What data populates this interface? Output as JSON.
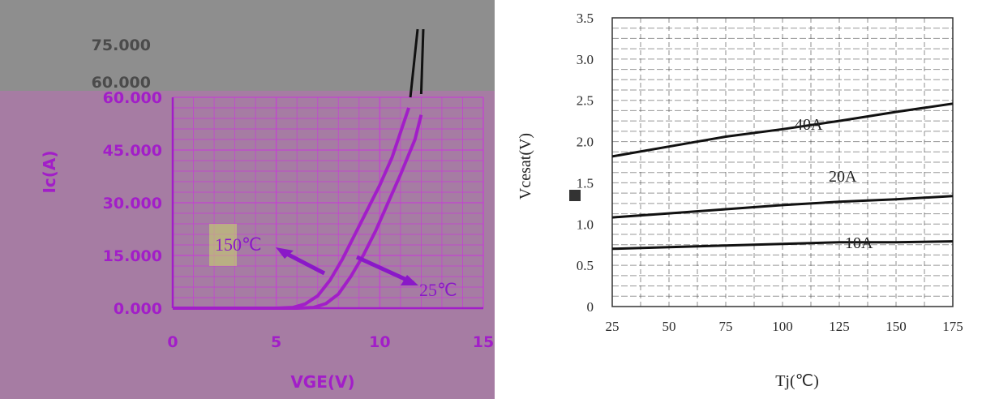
{
  "chart_data": [
    {
      "type": "line",
      "xlabel": "VGE(V)",
      "ylabel": "Ic(A)",
      "xlim": [
        0,
        15
      ],
      "ylim": [
        0,
        60
      ],
      "x_ticks": [
        "0",
        "5",
        "10",
        "15"
      ],
      "y_ticks": [
        "0.000",
        "15.000",
        "30.000",
        "45.000",
        "60.000"
      ],
      "clipped_top_labels": [
        "75.000",
        "60.000"
      ],
      "grid": true,
      "series": [
        {
          "name": "150℃",
          "x": [
            0,
            5,
            5.8,
            6.4,
            7,
            7.6,
            8.2,
            8.8,
            9.4,
            10,
            10.6,
            11.4
          ],
          "y": [
            0,
            0,
            0.2,
            1.2,
            3.5,
            8,
            14,
            21,
            28,
            35,
            43,
            57
          ]
        },
        {
          "name": "25℃",
          "x": [
            0,
            6,
            6.8,
            7.4,
            8,
            8.6,
            9.2,
            9.8,
            10.4,
            11,
            11.7,
            12
          ],
          "y": [
            0,
            0,
            0.2,
            1.3,
            4,
            9,
            15,
            22,
            30,
            38,
            48,
            55
          ]
        }
      ],
      "annotations": [
        "150℃",
        "25℃"
      ],
      "colors": {
        "background": "#a67ca3",
        "curve": "#a21ec8",
        "grid": "#c83cd8",
        "text": "#a21ec8"
      }
    },
    {
      "type": "line",
      "xlabel": "Tj(℃)",
      "ylabel": "Vcesat(V)",
      "xlim": [
        25,
        175
      ],
      "ylim": [
        0,
        3.5
      ],
      "x_ticks": [
        "25",
        "50",
        "75",
        "100",
        "125",
        "150",
        "175"
      ],
      "y_ticks": [
        "0",
        "0.5",
        "1.0",
        "1.5",
        "2.0",
        "2.5",
        "3.0",
        "3.5"
      ],
      "grid": true,
      "series": [
        {
          "name": "40A",
          "x": [
            25,
            50,
            75,
            100,
            125,
            150,
            175
          ],
          "y": [
            1.82,
            1.94,
            2.06,
            2.15,
            2.25,
            2.36,
            2.46
          ]
        },
        {
          "name": "20A",
          "x": [
            25,
            50,
            75,
            100,
            125,
            150,
            175
          ],
          "y": [
            1.08,
            1.13,
            1.18,
            1.23,
            1.27,
            1.3,
            1.34
          ]
        },
        {
          "name": "10A",
          "x": [
            25,
            50,
            75,
            100,
            125,
            150,
            175
          ],
          "y": [
            0.7,
            0.72,
            0.74,
            0.76,
            0.78,
            0.78,
            0.79
          ]
        }
      ],
      "annotations": [
        "40A",
        "20A",
        "10A"
      ],
      "colors": {
        "background": "#ffffff",
        "curve": "#111111",
        "grid": "#333333",
        "text": "#222222"
      }
    }
  ]
}
